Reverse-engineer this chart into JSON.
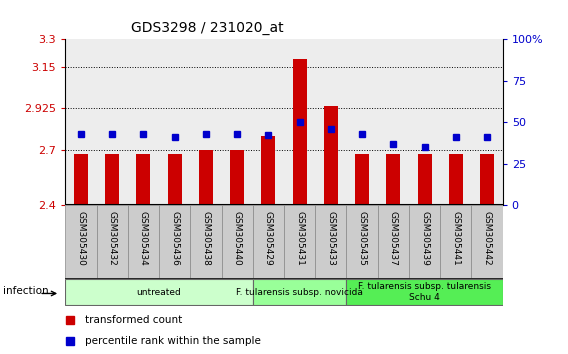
{
  "title": "GDS3298 / 231020_at",
  "categories": [
    "GSM305430",
    "GSM305432",
    "GSM305434",
    "GSM305436",
    "GSM305438",
    "GSM305440",
    "GSM305429",
    "GSM305431",
    "GSM305433",
    "GSM305435",
    "GSM305437",
    "GSM305439",
    "GSM305441",
    "GSM305442"
  ],
  "bar_values": [
    2.675,
    2.675,
    2.675,
    2.675,
    2.7,
    2.7,
    2.775,
    3.19,
    2.935,
    2.675,
    2.675,
    2.675,
    2.675,
    2.675
  ],
  "bar_bottom": 2.4,
  "dot_values_pct": [
    43,
    43,
    43,
    41,
    43,
    43,
    42,
    50,
    46,
    43,
    37,
    35,
    41,
    41
  ],
  "bar_color": "#cc0000",
  "dot_color": "#0000cc",
  "ylim_left": [
    2.4,
    3.3
  ],
  "ylim_right": [
    0,
    100
  ],
  "yticks_left": [
    2.4,
    2.7,
    2.925,
    3.15,
    3.3
  ],
  "yticks_right": [
    0,
    25,
    50,
    75,
    100
  ],
  "ytick_labels_left": [
    "2.4",
    "2.7",
    "2.925",
    "3.15",
    "3.3"
  ],
  "ytick_labels_right": [
    "0",
    "25",
    "50",
    "75",
    "100%"
  ],
  "hlines": [
    2.7,
    2.925,
    3.15
  ],
  "groups": [
    {
      "label": "untreated",
      "start": 0,
      "end": 5,
      "color": "#ccffcc"
    },
    {
      "label": "F. tularensis subsp. novicida",
      "start": 6,
      "end": 8,
      "color": "#99ff99"
    },
    {
      "label": "F. tularensis subsp. tularensis\nSchu 4",
      "start": 9,
      "end": 13,
      "color": "#55ee55"
    }
  ],
  "infection_label": "infection",
  "legend_items": [
    {
      "color": "#cc0000",
      "label": "transformed count"
    },
    {
      "color": "#0000cc",
      "label": "percentile rank within the sample"
    }
  ],
  "bg_color": "#ffffff",
  "col_bg_color": "#cccccc",
  "bar_width": 0.45
}
